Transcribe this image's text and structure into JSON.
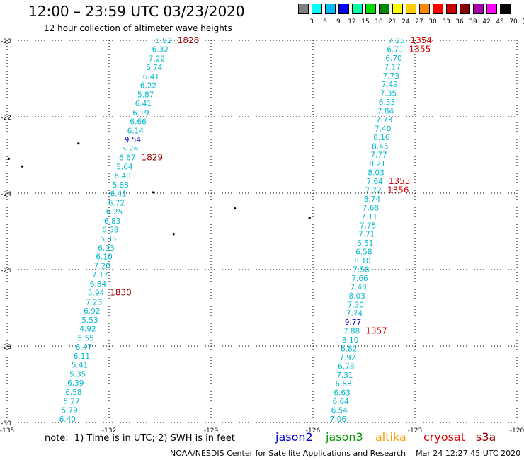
{
  "title": "12:00 – 23:59 UTC 03/23/2020",
  "subtitle": "12 hour collection of altimeter wave heights",
  "note": "note:  1) Time is in UTC; 2) SWH is in feet",
  "satellites": [
    {
      "name": "jason2",
      "color": "#0000cc"
    },
    {
      "name": "jason3",
      "color": "#009900"
    },
    {
      "name": "altika",
      "color": "#ff9900"
    },
    {
      "name": "cryosat",
      "color": "#dd0000"
    },
    {
      "name": "s3a",
      "color": "#990000"
    }
  ],
  "footer": "NOAA/NESDIS Center for Satellite Applications and Research    Mar 24 12:27:45 UTC 2020",
  "legend": {
    "colors": [
      "#808080",
      "#00ffff",
      "#00bbff",
      "#0000ff",
      "#00ffaa",
      "#00dd00",
      "#008800",
      "#ffff00",
      "#ffcc00",
      "#ff8800",
      "#ff0000",
      "#cc0000",
      "#880000",
      "#aa00aa",
      "#ff00ff",
      "#000000"
    ],
    "labels": [
      "3",
      "6",
      "9",
      "12",
      "15",
      "18",
      "21",
      "24",
      "27",
      "30",
      "33",
      "36",
      "39",
      "42",
      "45",
      "70",
      "(ft)"
    ]
  },
  "map": {
    "lon_range": [
      -135,
      -120
    ],
    "lat_range": [
      -30,
      -20
    ],
    "lon_ticks": [
      -135,
      -132,
      -129,
      -126,
      -123,
      -120
    ],
    "lat_ticks": [
      -20,
      -22,
      -24,
      -26,
      -28,
      -30
    ],
    "lon_labels": [
      "-135",
      "-132",
      "-129",
      "-126",
      "-123",
      "-120"
    ],
    "lat_labels": [
      "-20",
      "-22",
      "-24",
      "-26",
      "-28",
      "-30"
    ]
  },
  "tracks": [
    {
      "name": "track-left",
      "color_default": "#00bbcc",
      "points": [
        {
          "lon": -130.15,
          "lat": -20.0,
          "swh": "5.92"
        },
        {
          "lon": -130.25,
          "lat": -20.2,
          "swh": "6.32"
        },
        {
          "lon": -130.35,
          "lat": -20.4,
          "swh": "7.22"
        },
        {
          "lon": -130.43,
          "lat": -20.6,
          "swh": "6.74"
        },
        {
          "lon": -130.52,
          "lat": -20.8,
          "swh": "6.41"
        },
        {
          "lon": -130.6,
          "lat": -21.0,
          "swh": "6.22"
        },
        {
          "lon": -130.68,
          "lat": -21.2,
          "swh": "5.87"
        },
        {
          "lon": -130.75,
          "lat": -21.4,
          "swh": "6.41"
        },
        {
          "lon": -130.82,
          "lat": -21.6,
          "swh": "6.19"
        },
        {
          "lon": -130.9,
          "lat": -21.8,
          "swh": "6.66"
        },
        {
          "lon": -130.98,
          "lat": -22.0,
          "swh": "6.14"
        },
        {
          "lon": -131.06,
          "lat": -22.2,
          "swh": "9.54",
          "color": "#0000cc"
        },
        {
          "lon": -131.14,
          "lat": -22.4,
          "swh": "5.26"
        },
        {
          "lon": -131.22,
          "lat": -22.6,
          "swh": "6.67"
        },
        {
          "lon": -131.3,
          "lat": -22.8,
          "swh": "5.64"
        },
        {
          "lon": -131.36,
          "lat": -23.0,
          "swh": "6.40"
        },
        {
          "lon": -131.42,
          "lat": -23.2,
          "swh": "5.88"
        },
        {
          "lon": -131.48,
          "lat": -23.4,
          "swh": "6.41"
        },
        {
          "lon": -131.54,
          "lat": -23.6,
          "swh": "6.72"
        },
        {
          "lon": -131.6,
          "lat": -23.8,
          "swh": "6.25"
        },
        {
          "lon": -131.66,
          "lat": -24.0,
          "swh": "6.83"
        },
        {
          "lon": -131.72,
          "lat": -24.2,
          "swh": "6.58"
        },
        {
          "lon": -131.78,
          "lat": -24.4,
          "swh": "5.85"
        },
        {
          "lon": -131.84,
          "lat": -24.6,
          "swh": "6.93"
        },
        {
          "lon": -131.9,
          "lat": -24.8,
          "swh": "6.10"
        },
        {
          "lon": -131.96,
          "lat": -25.0,
          "swh": "7.20"
        },
        {
          "lon": -132.02,
          "lat": -25.2,
          "swh": "7.17"
        },
        {
          "lon": -132.08,
          "lat": -25.4,
          "swh": "6.84"
        },
        {
          "lon": -132.14,
          "lat": -25.6,
          "swh": "5.94"
        },
        {
          "lon": -132.2,
          "lat": -25.8,
          "swh": "7.23"
        },
        {
          "lon": -132.26,
          "lat": -26.0,
          "swh": "6.92"
        },
        {
          "lon": -132.32,
          "lat": -26.2,
          "swh": "5.53"
        },
        {
          "lon": -132.38,
          "lat": -26.4,
          "swh": "4.92"
        },
        {
          "lon": -132.44,
          "lat": -26.6,
          "swh": "5.55"
        },
        {
          "lon": -132.5,
          "lat": -26.8,
          "swh": "6.47"
        },
        {
          "lon": -132.56,
          "lat": -27.0,
          "swh": "6.11"
        },
        {
          "lon": -132.62,
          "lat": -27.2,
          "swh": "5.41"
        },
        {
          "lon": -132.68,
          "lat": -27.4,
          "swh": "5.35"
        },
        {
          "lon": -132.74,
          "lat": -27.6,
          "swh": "6.39"
        },
        {
          "lon": -132.8,
          "lat": -27.8,
          "swh": "6.58"
        },
        {
          "lon": -132.86,
          "lat": -28.0,
          "swh": "5.27"
        },
        {
          "lon": -132.92,
          "lat": -28.2,
          "swh": "5.79"
        },
        {
          "lon": -132.98,
          "lat": -28.4,
          "swh": "6.40"
        }
      ],
      "times": [
        {
          "text": "1828",
          "color": "#990000",
          "after_index": 0
        },
        {
          "text": "1829",
          "color": "#990000",
          "after_index": 13
        },
        {
          "text": "1830",
          "color": "#990000",
          "after_index": 28
        }
      ]
    },
    {
      "name": "track-right",
      "color_default": "#00bbcc",
      "points": [
        {
          "lon": -123.3,
          "lat": -20.0,
          "swh": "7.25"
        },
        {
          "lon": -123.34,
          "lat": -20.2,
          "swh": "6.71"
        },
        {
          "lon": -123.38,
          "lat": -20.4,
          "swh": "6.70"
        },
        {
          "lon": -123.42,
          "lat": -20.6,
          "swh": "7.17"
        },
        {
          "lon": -123.46,
          "lat": -20.8,
          "swh": "7.73"
        },
        {
          "lon": -123.5,
          "lat": -21.0,
          "swh": "7.49"
        },
        {
          "lon": -123.54,
          "lat": -21.2,
          "swh": "7.35"
        },
        {
          "lon": -123.58,
          "lat": -21.4,
          "swh": "6.33"
        },
        {
          "lon": -123.62,
          "lat": -21.6,
          "swh": "7.84"
        },
        {
          "lon": -123.66,
          "lat": -21.8,
          "swh": "7.73"
        },
        {
          "lon": -123.7,
          "lat": -22.0,
          "swh": "7.40"
        },
        {
          "lon": -123.74,
          "lat": -22.2,
          "swh": "8.16"
        },
        {
          "lon": -123.78,
          "lat": -22.4,
          "swh": "8.45"
        },
        {
          "lon": -123.82,
          "lat": -22.6,
          "swh": "7.77"
        },
        {
          "lon": -123.86,
          "lat": -22.8,
          "swh": "8.21"
        },
        {
          "lon": -123.9,
          "lat": -23.0,
          "swh": "8.03"
        },
        {
          "lon": -123.94,
          "lat": -23.2,
          "swh": "7.64"
        },
        {
          "lon": -123.98,
          "lat": -23.4,
          "swh": "7.72"
        },
        {
          "lon": -124.02,
          "lat": -23.6,
          "swh": "8.74"
        },
        {
          "lon": -124.06,
          "lat": -23.8,
          "swh": "7.68"
        },
        {
          "lon": -124.1,
          "lat": -24.0,
          "swh": "7.11"
        },
        {
          "lon": -124.14,
          "lat": -24.2,
          "swh": "7.75"
        },
        {
          "lon": -124.18,
          "lat": -24.4,
          "swh": "7.71"
        },
        {
          "lon": -124.22,
          "lat": -24.6,
          "swh": "6.51"
        },
        {
          "lon": -124.26,
          "lat": -24.8,
          "swh": "6.58"
        },
        {
          "lon": -124.3,
          "lat": -25.0,
          "swh": "8.10"
        },
        {
          "lon": -124.34,
          "lat": -25.2,
          "swh": "7.58"
        },
        {
          "lon": -124.38,
          "lat": -25.4,
          "swh": "7.66"
        },
        {
          "lon": -124.42,
          "lat": -25.6,
          "swh": "7.43"
        },
        {
          "lon": -124.46,
          "lat": -25.8,
          "swh": "8.03"
        },
        {
          "lon": -124.5,
          "lat": -26.0,
          "swh": "7.30"
        },
        {
          "lon": -124.54,
          "lat": -26.2,
          "swh": "7.74"
        },
        {
          "lon": -124.58,
          "lat": -26.4,
          "swh": "9.77",
          "color": "#0000cc"
        },
        {
          "lon": -124.62,
          "lat": -26.6,
          "swh": "7.88"
        },
        {
          "lon": -124.66,
          "lat": -26.8,
          "swh": "8.10"
        },
        {
          "lon": -124.7,
          "lat": -27.0,
          "swh": "6.82"
        },
        {
          "lon": -124.74,
          "lat": -27.2,
          "swh": "7.92"
        },
        {
          "lon": -124.78,
          "lat": -27.4,
          "swh": "6.78"
        },
        {
          "lon": -124.82,
          "lat": -27.6,
          "swh": "7.31"
        },
        {
          "lon": -124.86,
          "lat": -27.8,
          "swh": "6.88"
        },
        {
          "lon": -124.9,
          "lat": -28.0,
          "swh": "6.63"
        },
        {
          "lon": -124.94,
          "lat": -28.2,
          "swh": "6.64"
        },
        {
          "lon": -124.98,
          "lat": -28.4,
          "swh": "6.54"
        },
        {
          "lon": -125.02,
          "lat": -28.6,
          "swh": "7.06"
        }
      ],
      "times": [
        {
          "text": "1354",
          "color": "#dd0000",
          "after_index": 0
        },
        {
          "text": "1355",
          "color": "#dd0000",
          "after_index": 1
        },
        {
          "text": "1355",
          "color": "#dd0000",
          "after_index": 16
        },
        {
          "text": "1356",
          "color": "#dd0000",
          "after_index": 17
        },
        {
          "text": "1357",
          "color": "#dd0000",
          "after_index": 33
        }
      ]
    }
  ],
  "islands": [
    {
      "lon": -132.9,
      "lat": -22.7
    },
    {
      "lon": -134.95,
      "lat": -23.1
    },
    {
      "lon": -134.55,
      "lat": -23.3
    },
    {
      "lon": -130.7,
      "lat": -23.98
    },
    {
      "lon": -128.3,
      "lat": -24.4
    },
    {
      "lon": -130.1,
      "lat": -25.07
    },
    {
      "lon": -126.1,
      "lat": -24.65
    }
  ]
}
